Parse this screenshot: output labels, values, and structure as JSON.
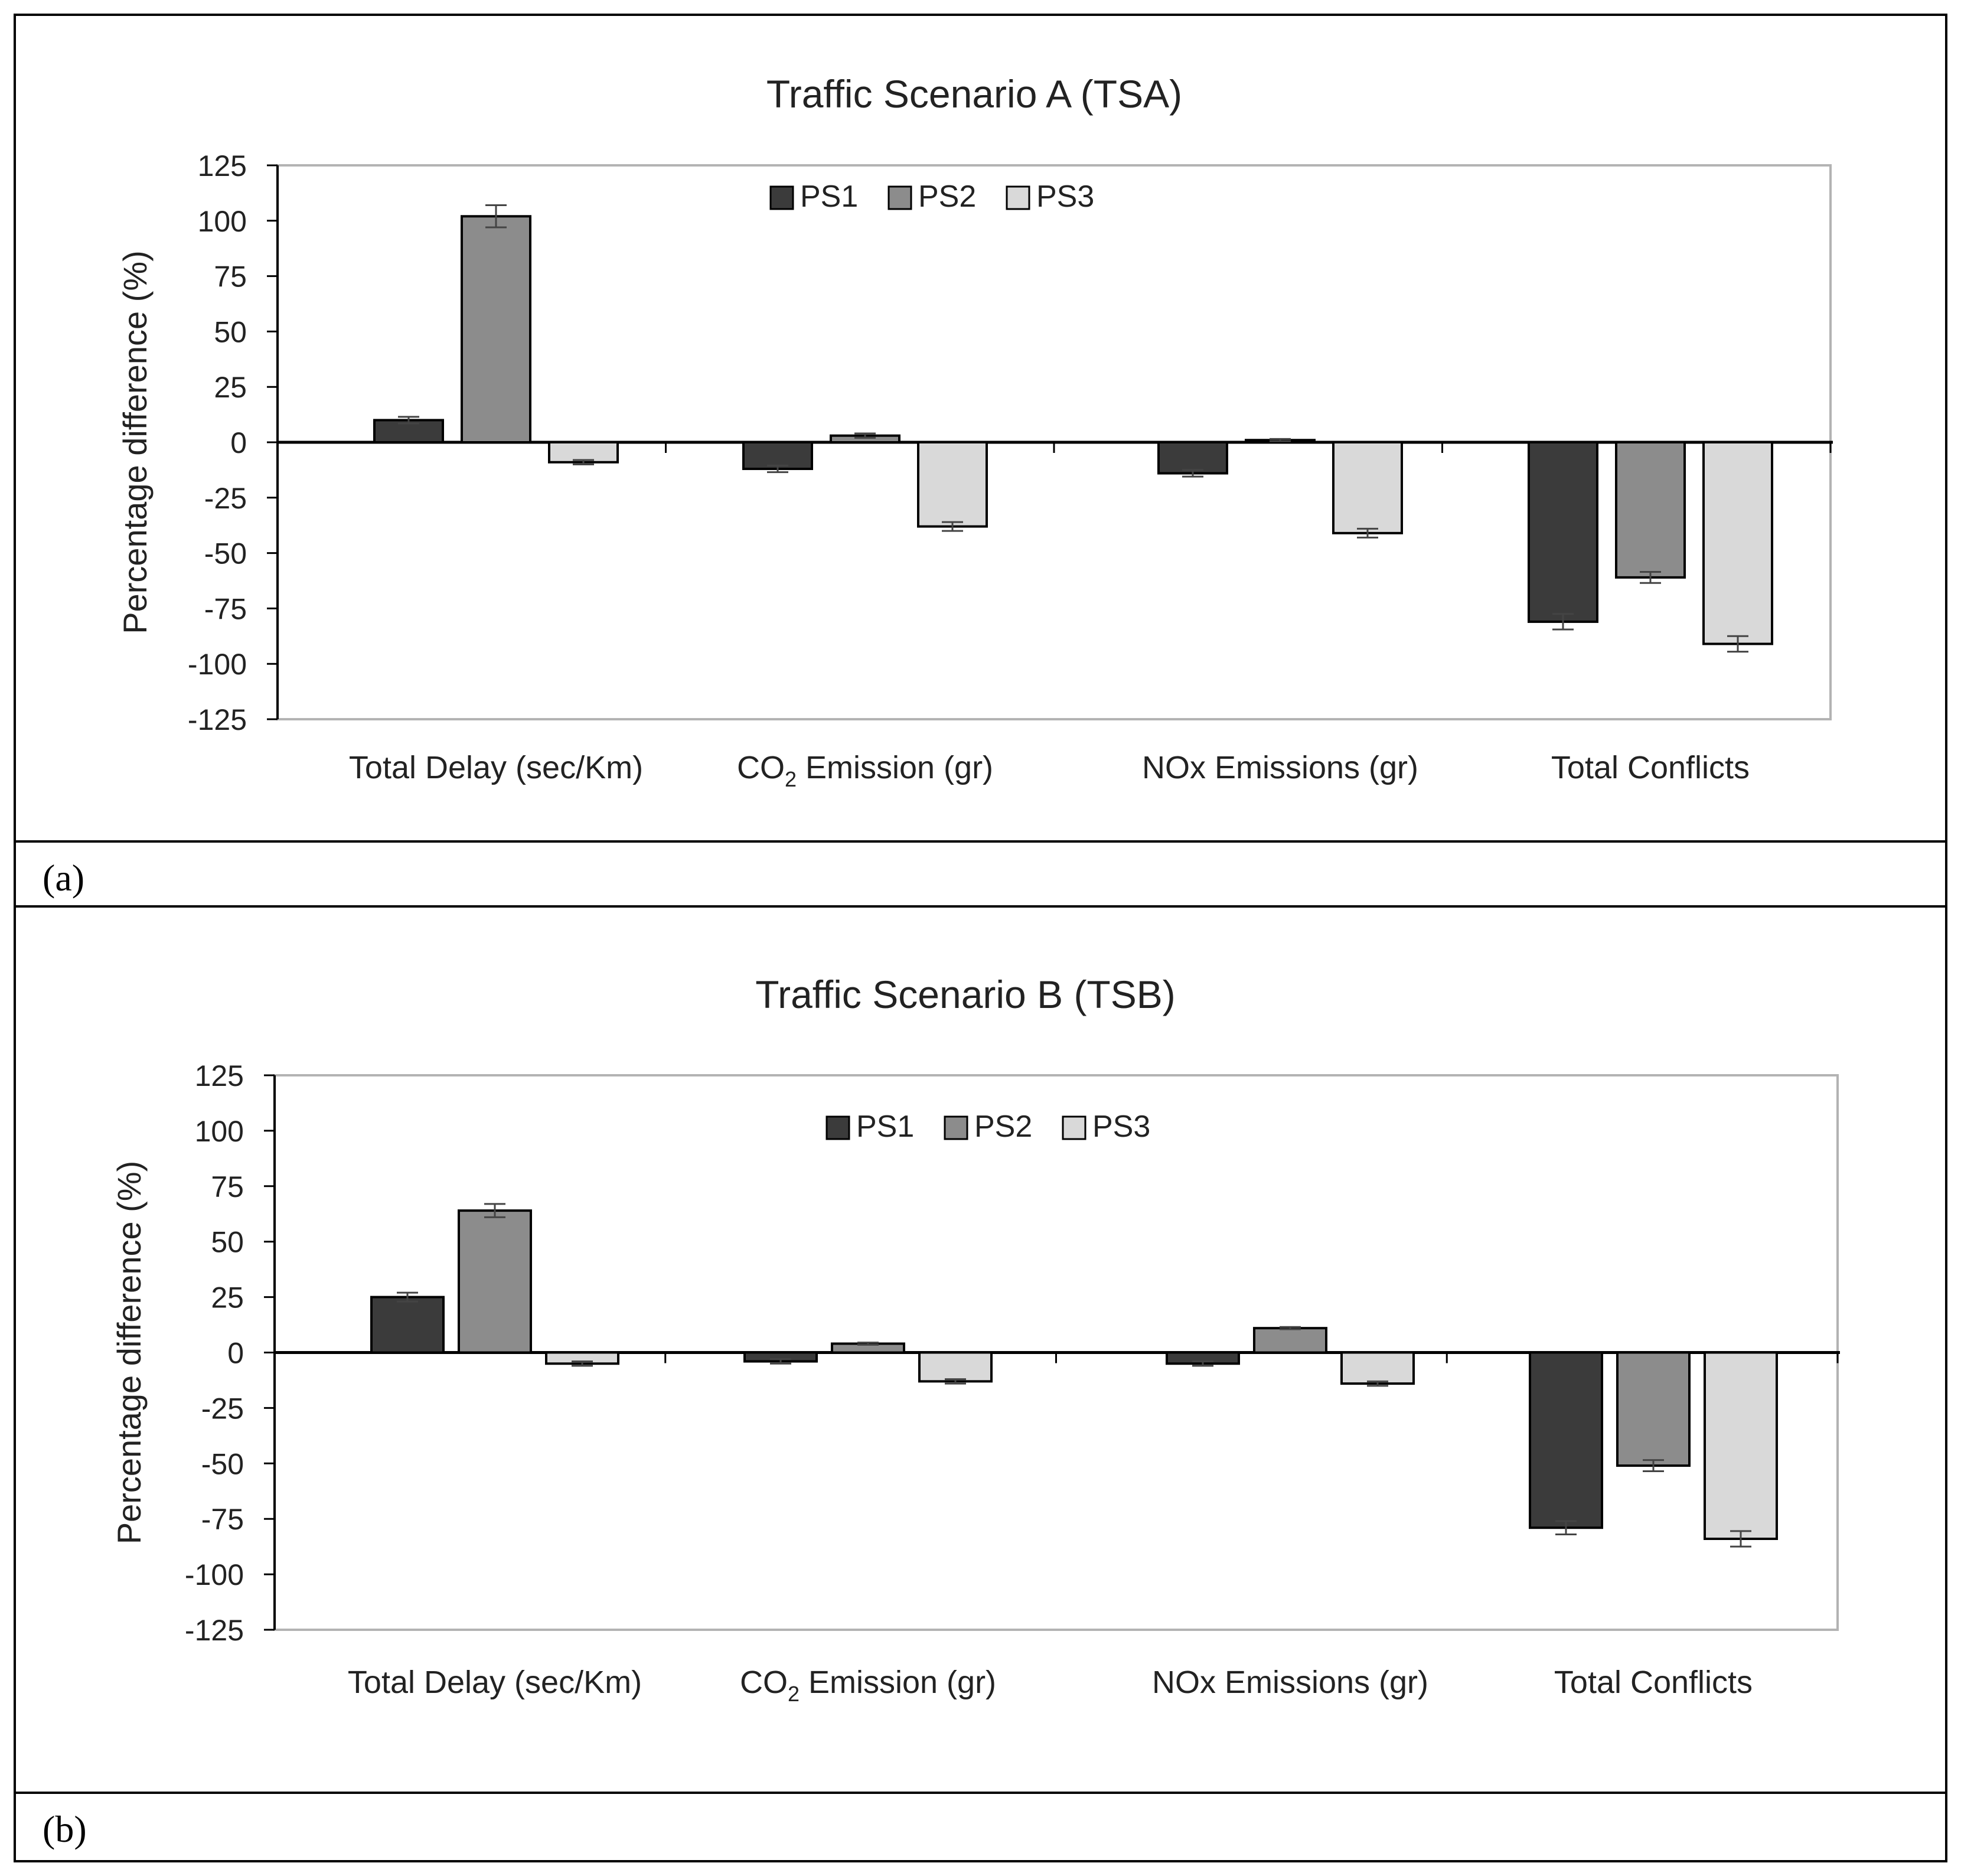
{
  "panels": [
    {
      "caption": "(a)"
    },
    {
      "caption": "(b)"
    }
  ],
  "colors": {
    "PS1": "#3b3b3b",
    "PS2": "#8c8c8c",
    "PS3": "#d9d9d9"
  },
  "chart_data": [
    {
      "type": "bar",
      "title": "Traffic Scenario A (TSA)",
      "ylabel": "Percentage difference (%)",
      "xlabel": "",
      "ylim": [
        -125,
        125
      ],
      "yticks": [
        125,
        100,
        75,
        50,
        25,
        0,
        -25,
        -50,
        -75,
        -100,
        -125
      ],
      "categories": [
        "Total Delay (sec/Km)",
        "CO2 Emission (gr)",
        "NOx Emissions (gr)",
        "Total Conflicts"
      ],
      "category_parts": [
        {
          "main": "Total Delay (sec/Km)"
        },
        {
          "pre": "CO",
          "sub": "2",
          "post": " Emission (gr)"
        },
        {
          "main": "NOx Emissions (gr)"
        },
        {
          "main": "Total Conflicts"
        }
      ],
      "series": [
        {
          "name": "PS1",
          "values": [
            10,
            -12,
            -14,
            -81
          ],
          "errors": [
            1.5,
            1.5,
            1.5,
            3.5
          ]
        },
        {
          "name": "PS2",
          "values": [
            102,
            3,
            1,
            -61
          ],
          "errors": [
            5,
            1,
            0.5,
            2.5
          ]
        },
        {
          "name": "PS3",
          "values": [
            -9,
            -38,
            -41,
            -91
          ],
          "errors": [
            1,
            2,
            2,
            3.5
          ]
        }
      ],
      "legend": "top-center"
    },
    {
      "type": "bar",
      "title": "Traffic Scenario B (TSB)",
      "ylabel": "Percentage difference (%)",
      "xlabel": "",
      "ylim": [
        -125,
        125
      ],
      "yticks": [
        125,
        100,
        75,
        50,
        25,
        0,
        -25,
        -50,
        -75,
        -100,
        -125
      ],
      "categories": [
        "Total Delay (sec/Km)",
        "CO2 Emission (gr)",
        "NOx Emissions (gr)",
        "Total Conflicts"
      ],
      "category_parts": [
        {
          "main": "Total Delay (sec/Km)"
        },
        {
          "pre": "CO",
          "sub": "2",
          "post": " Emission (gr)"
        },
        {
          "main": "NOx Emissions (gr)"
        },
        {
          "main": "Total Conflicts"
        }
      ],
      "series": [
        {
          "name": "PS1",
          "values": [
            25,
            -4,
            -5,
            -79
          ],
          "errors": [
            2,
            1,
            1,
            3
          ]
        },
        {
          "name": "PS2",
          "values": [
            64,
            4,
            11,
            -51
          ],
          "errors": [
            3,
            0.5,
            0.5,
            2.5
          ]
        },
        {
          "name": "PS3",
          "values": [
            -5,
            -13,
            -14,
            -84
          ],
          "errors": [
            1,
            1,
            1,
            3.5
          ]
        }
      ],
      "legend": "top-center"
    }
  ]
}
